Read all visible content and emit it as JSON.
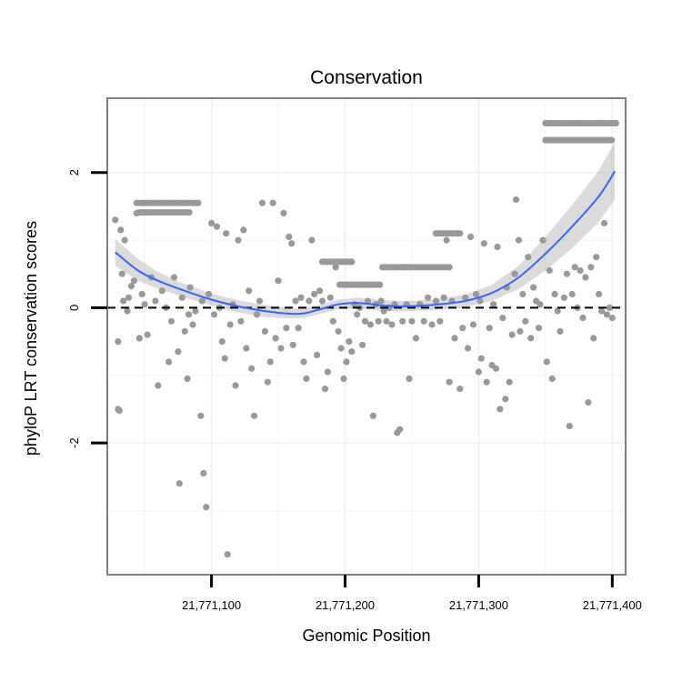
{
  "chart_data": {
    "type": "scatter",
    "title": "Conservation",
    "xlabel": "Genomic Position",
    "ylabel": "phyloP LRT conservation scores",
    "xlim": [
      21771022,
      21771410
    ],
    "ylim": [
      -3.95,
      3.1
    ],
    "x_ticks": [
      21771100,
      21771200,
      21771300,
      21771400
    ],
    "x_tick_labels": [
      "21,771,100",
      "21,771,200",
      "21,771,300",
      "21,771,400"
    ],
    "y_ticks": [
      2,
      0,
      -2
    ],
    "y_tick_labels": [
      "2",
      "0",
      "-2"
    ],
    "grid": true,
    "reference_line": {
      "y": 0,
      "style": "dashed"
    },
    "series": [
      {
        "type": "scatter",
        "color": "#999999",
        "points": [
          [
            21771028,
            1.3
          ],
          [
            21771030,
            -1.5
          ],
          [
            21771031,
            -1.52
          ],
          [
            21771030,
            -0.5
          ],
          [
            21771032,
            1.15
          ],
          [
            21771033,
            0.5
          ],
          [
            21771034,
            0.1
          ],
          [
            21771035,
            1.0
          ],
          [
            21771037,
            -0.05
          ],
          [
            21771038,
            0.15
          ],
          [
            21771040,
            0.32
          ],
          [
            21771042,
            0.4
          ],
          [
            21771044,
            1.4
          ],
          [
            21771046,
            -0.45
          ],
          [
            21771048,
            0.2
          ],
          [
            21771050,
            0.05
          ],
          [
            21771052,
            -0.4
          ],
          [
            21771055,
            0.45
          ],
          [
            21771058,
            0.1
          ],
          [
            21771060,
            -1.15
          ],
          [
            21771063,
            0.25
          ],
          [
            21771066,
            0.0
          ],
          [
            21771068,
            -0.8
          ],
          [
            21771070,
            -0.2
          ],
          [
            21771072,
            0.45
          ],
          [
            21771075,
            -0.65
          ],
          [
            21771076,
            -2.6
          ],
          [
            21771078,
            0.15
          ],
          [
            21771080,
            -0.35
          ],
          [
            21771082,
            -1.05
          ],
          [
            21771083,
            -0.1
          ],
          [
            21771084,
            0.3
          ],
          [
            21771086,
            -0.25
          ],
          [
            21771088,
            -0.05
          ],
          [
            21771090,
            1.55
          ],
          [
            21771092,
            -1.6
          ],
          [
            21771093,
            0.1
          ],
          [
            21771094,
            -2.45
          ],
          [
            21771096,
            -2.95
          ],
          [
            21771098,
            0.2
          ],
          [
            21771100,
            1.25
          ],
          [
            21771102,
            -0.1
          ],
          [
            21771104,
            1.2
          ],
          [
            21771106,
            0.0
          ],
          [
            21771108,
            -0.5
          ],
          [
            21771110,
            -0.75
          ],
          [
            21771111,
            1.1
          ],
          [
            21771112,
            -3.65
          ],
          [
            21771114,
            -0.25
          ],
          [
            21771116,
            0.05
          ],
          [
            21771118,
            -1.15
          ],
          [
            21771120,
            1.0
          ],
          [
            21771122,
            -0.2
          ],
          [
            21771124,
            1.15
          ],
          [
            21771126,
            -0.6
          ],
          [
            21771128,
            0.25
          ],
          [
            21771130,
            -0.9
          ],
          [
            21771132,
            -1.6
          ],
          [
            21771134,
            -0.1
          ],
          [
            21771136,
            0.1
          ],
          [
            21771138,
            1.55
          ],
          [
            21771140,
            -0.35
          ],
          [
            21771142,
            -1.1
          ],
          [
            21771144,
            -0.8
          ],
          [
            21771146,
            1.55
          ],
          [
            21771148,
            -0.45
          ],
          [
            21771150,
            0.4
          ],
          [
            21771152,
            -0.6
          ],
          [
            21771154,
            1.4
          ],
          [
            21771156,
            -0.3
          ],
          [
            21771158,
            1.05
          ],
          [
            21771160,
            0.95
          ],
          [
            21771161,
            -0.55
          ],
          [
            21771163,
            0.1
          ],
          [
            21771165,
            -0.3
          ],
          [
            21771167,
            0.15
          ],
          [
            21771169,
            -0.8
          ],
          [
            21771171,
            -1.05
          ],
          [
            21771173,
            0.1
          ],
          [
            21771175,
            1.0
          ],
          [
            21771177,
            0.2
          ],
          [
            21771179,
            -0.7
          ],
          [
            21771181,
            0.25
          ],
          [
            21771183,
            0.1
          ],
          [
            21771185,
            -1.2
          ],
          [
            21771187,
            -0.95
          ],
          [
            21771189,
            0.15
          ],
          [
            21771191,
            -0.2
          ],
          [
            21771193,
            0.6
          ],
          [
            21771195,
            -0.35
          ],
          [
            21771197,
            -0.6
          ],
          [
            21771199,
            -1.05
          ],
          [
            21771201,
            -0.8
          ],
          [
            21771203,
            -0.5
          ],
          [
            21771205,
            -0.65
          ],
          [
            21771207,
            0.05
          ],
          [
            21771209,
            -0.1
          ],
          [
            21771211,
            0.0
          ],
          [
            21771213,
            -0.55
          ],
          [
            21771215,
            -0.2
          ],
          [
            21771217,
            0.1
          ],
          [
            21771219,
            -0.25
          ],
          [
            21771221,
            -1.6
          ],
          [
            21771223,
            0.05
          ],
          [
            21771225,
            -0.2
          ],
          [
            21771227,
            0.1
          ],
          [
            21771229,
            -0.05
          ],
          [
            21771231,
            -0.2
          ],
          [
            21771233,
            0.0
          ],
          [
            21771235,
            -0.25
          ],
          [
            21771237,
            0.05
          ],
          [
            21771239,
            -1.85
          ],
          [
            21771241,
            -1.8
          ],
          [
            21771243,
            -0.2
          ],
          [
            21771246,
            0.05
          ],
          [
            21771248,
            -1.05
          ],
          [
            21771250,
            -0.2
          ],
          [
            21771253,
            -0.45
          ],
          [
            21771256,
            0.05
          ],
          [
            21771259,
            -0.2
          ],
          [
            21771262,
            0.15
          ],
          [
            21771265,
            -0.25
          ],
          [
            21771268,
            0.1
          ],
          [
            21771271,
            -0.2
          ],
          [
            21771274,
            0.15
          ],
          [
            21771276,
            1.0
          ],
          [
            21771278,
            -1.1
          ],
          [
            21771280,
            0.1
          ],
          [
            21771282,
            -0.45
          ],
          [
            21771284,
            1.1
          ],
          [
            21771286,
            -1.2
          ],
          [
            21771288,
            -0.3
          ],
          [
            21771290,
            0.15
          ],
          [
            21771292,
            -0.6
          ],
          [
            21771294,
            1.05
          ],
          [
            21771296,
            -0.25
          ],
          [
            21771298,
            0.2
          ],
          [
            21771300,
            -0.95
          ],
          [
            21771301,
            0.1
          ],
          [
            21771302,
            -0.75
          ],
          [
            21771304,
            0.95
          ],
          [
            21771306,
            -1.1
          ],
          [
            21771308,
            -0.3
          ],
          [
            21771310,
            -0.85
          ],
          [
            21771311,
            0.05
          ],
          [
            21771313,
            -0.9
          ],
          [
            21771314,
            0.9
          ],
          [
            21771316,
            -1.5
          ],
          [
            21771318,
            -0.15
          ],
          [
            21771320,
            -1.35
          ],
          [
            21771321,
            0.3
          ],
          [
            21771323,
            -1.1
          ],
          [
            21771325,
            -0.4
          ],
          [
            21771327,
            0.5
          ],
          [
            21771328,
            1.6
          ],
          [
            21771330,
            1.0
          ],
          [
            21771331,
            -0.35
          ],
          [
            21771333,
            0.2
          ],
          [
            21771335,
            -0.2
          ],
          [
            21771337,
            0.75
          ],
          [
            21771339,
            -0.45
          ],
          [
            21771341,
            0.3
          ],
          [
            21771343,
            0.1
          ],
          [
            21771345,
            -0.3
          ],
          [
            21771346,
            0.05
          ],
          [
            21771348,
            1.0
          ],
          [
            21771351,
            -0.8
          ],
          [
            21771353,
            0.55
          ],
          [
            21771355,
            -1.05
          ],
          [
            21771357,
            0.2
          ],
          [
            21771359,
            -0.05
          ],
          [
            21771361,
            -0.35
          ],
          [
            21771364,
            0.15
          ],
          [
            21771366,
            0.5
          ],
          [
            21771368,
            -1.75
          ],
          [
            21771370,
            0.2
          ],
          [
            21771372,
            0.6
          ],
          [
            21771374,
            0.0
          ],
          [
            21771376,
            0.55
          ],
          [
            21771378,
            -0.15
          ],
          [
            21771380,
            0.45
          ],
          [
            21771382,
            -1.4
          ],
          [
            21771384,
            0.6
          ],
          [
            21771386,
            -0.45
          ],
          [
            21771388,
            0.75
          ],
          [
            21771390,
            0.2
          ],
          [
            21771392,
            -0.05
          ],
          [
            21771394,
            1.25
          ],
          [
            21771396,
            -0.1
          ],
          [
            21771398,
            0.0
          ],
          [
            21771400,
            -0.15
          ]
        ],
        "segments": [
          {
            "x_from": 21771044,
            "x_to": 21771090,
            "y": 1.55,
            "step": 2.2
          },
          {
            "x_from": 21771046,
            "x_to": 21771084,
            "y": 1.41,
            "step": 2.2
          },
          {
            "x_from": 21771183,
            "x_to": 21771205,
            "y": 0.68,
            "step": 2.0
          },
          {
            "x_from": 21771196,
            "x_to": 21771226,
            "y": 0.34,
            "step": 2.0
          },
          {
            "x_from": 21771228,
            "x_to": 21771278,
            "y": 0.6,
            "step": 2.0
          },
          {
            "x_from": 21771268,
            "x_to": 21771286,
            "y": 1.1,
            "step": 2.0
          },
          {
            "x_from": 21771350,
            "x_to": 21771403,
            "y": 2.73,
            "step": 1.6
          },
          {
            "x_from": 21771350,
            "x_to": 21771400,
            "y": 2.48,
            "step": 1.6
          }
        ]
      },
      {
        "type": "line",
        "smooth": true,
        "color": "#3366FF",
        "band_color": "#999999",
        "x": [
          21771028,
          21771045,
          21771060,
          21771080,
          21771100,
          21771120,
          21771140,
          21771160,
          21771170,
          21771180,
          21771195,
          21771210,
          21771230,
          21771245,
          21771265,
          21771290,
          21771310,
          21771330,
          21771350,
          21771370,
          21771390,
          21771402
        ],
        "y": [
          0.82,
          0.55,
          0.4,
          0.25,
          0.12,
          0.02,
          -0.05,
          -0.09,
          -0.08,
          -0.03,
          0.05,
          0.07,
          0.03,
          0.02,
          0.04,
          0.1,
          0.22,
          0.45,
          0.8,
          1.2,
          1.65,
          2.02
        ],
        "lower": [
          0.62,
          0.4,
          0.28,
          0.15,
          0.03,
          -0.07,
          -0.14,
          -0.16,
          -0.15,
          -0.1,
          -0.02,
          -0.01,
          -0.05,
          -0.05,
          -0.04,
          0.01,
          0.1,
          0.28,
          0.55,
          0.88,
          1.27,
          1.6
        ],
        "upper": [
          1.02,
          0.72,
          0.53,
          0.35,
          0.21,
          0.11,
          0.04,
          -0.02,
          -0.01,
          0.04,
          0.12,
          0.15,
          0.11,
          0.1,
          0.12,
          0.19,
          0.34,
          0.62,
          1.05,
          1.52,
          2.03,
          2.45
        ]
      }
    ]
  }
}
